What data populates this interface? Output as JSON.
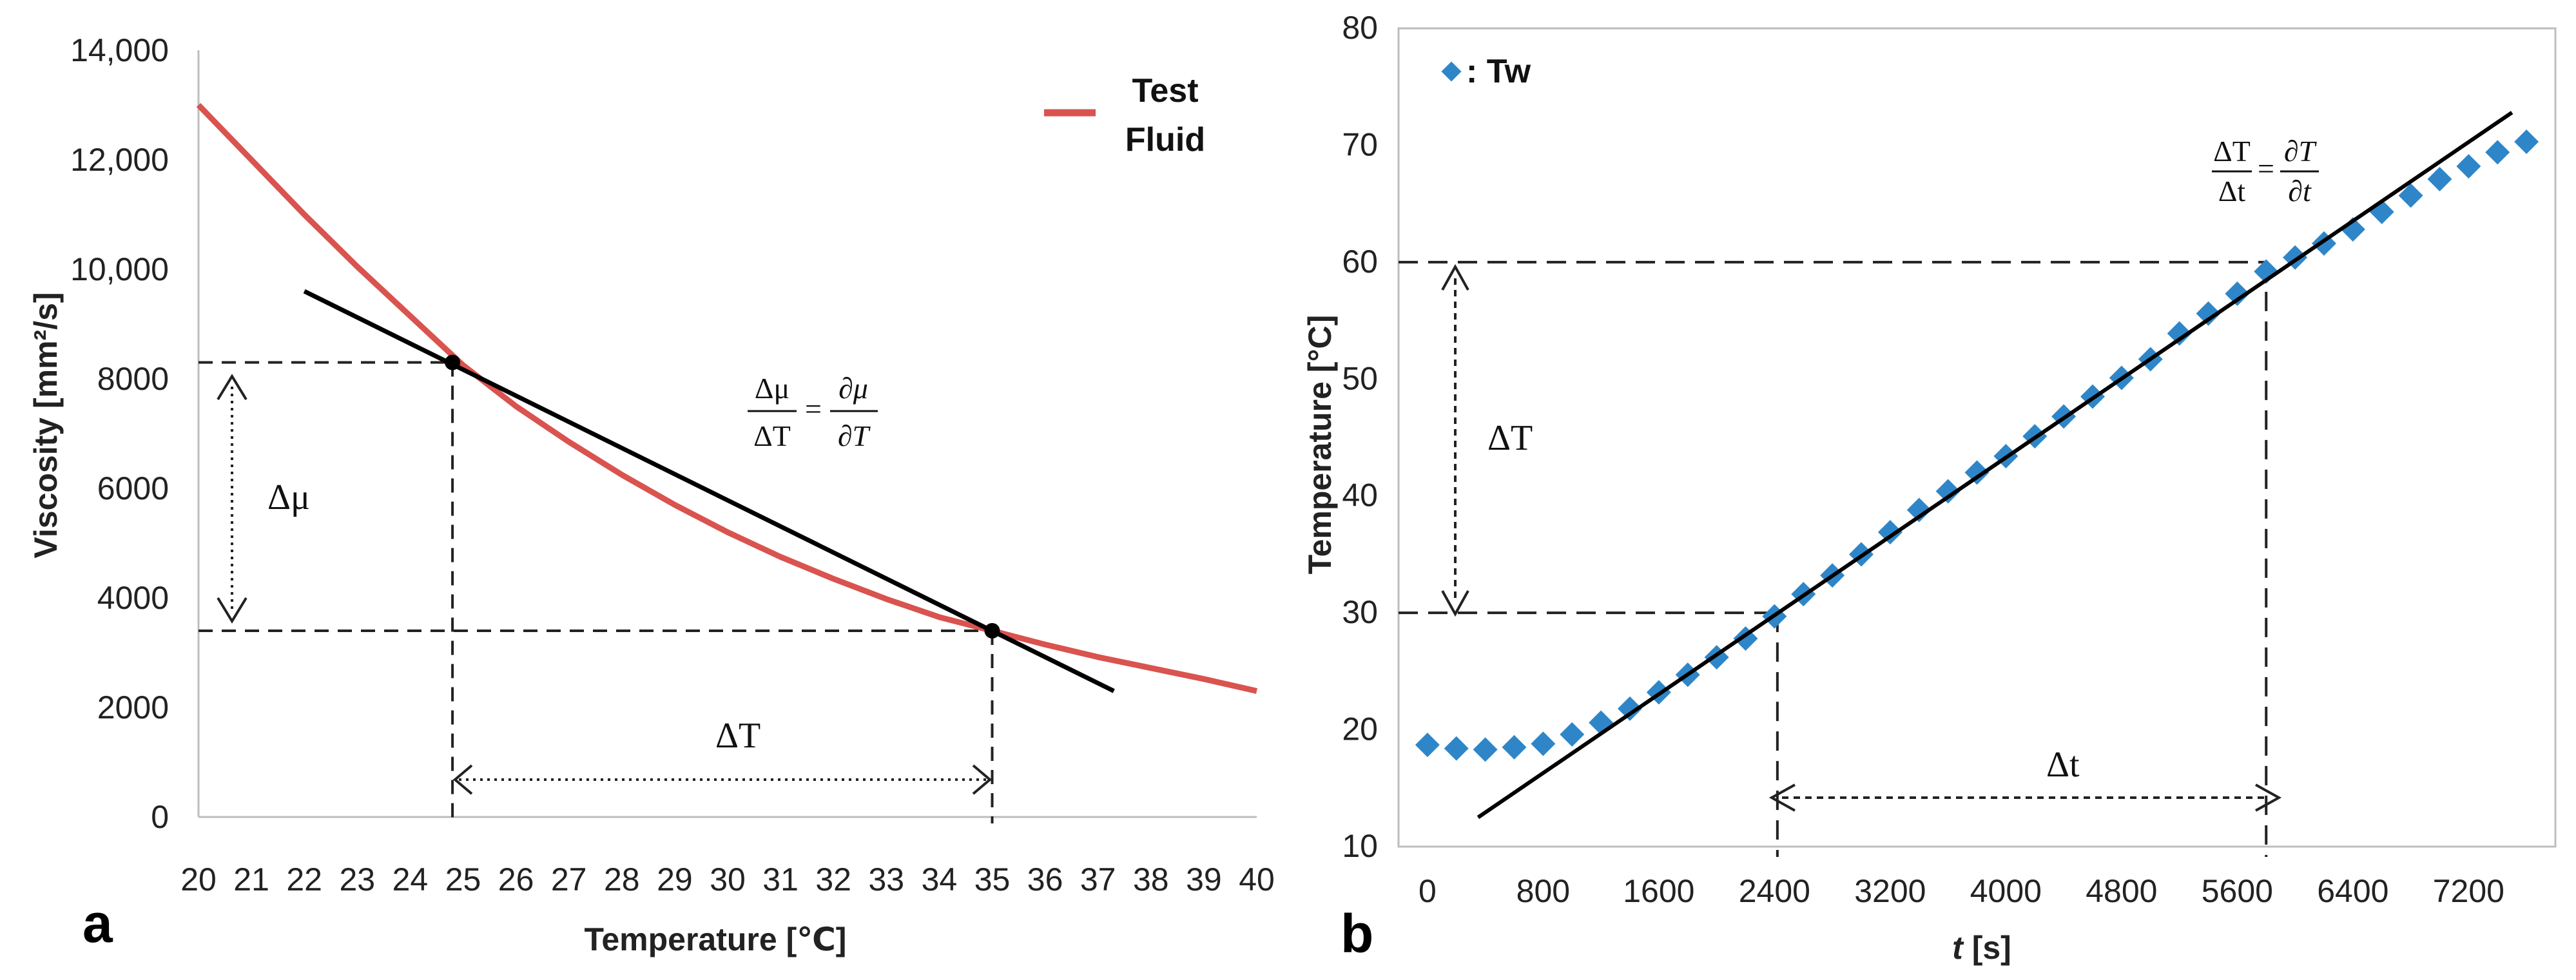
{
  "chart_data": [
    {
      "panel_label": "a",
      "type": "line",
      "title": "",
      "xlabel": "Temperature [℃]",
      "ylabel": "Viscosity  [mm²/s]",
      "xlim": [
        20,
        40
      ],
      "ylim": [
        0,
        14000
      ],
      "xticks": [
        "20",
        "21",
        "22",
        "23",
        "24",
        "25",
        "26",
        "27",
        "28",
        "29",
        "30",
        "31",
        "32",
        "33",
        "34",
        "35",
        "36",
        "37",
        "38",
        "39",
        "40"
      ],
      "yticks": [
        "0",
        "2000",
        "4000",
        "6000",
        "8000",
        "10,000",
        "12,000",
        "14,000"
      ],
      "series": [
        {
          "name": "Test Fluid",
          "color": "#d9534f",
          "x": [
            20,
            21,
            22,
            23,
            24,
            25,
            26,
            27,
            28,
            29,
            30,
            31,
            32,
            33,
            34,
            35,
            36,
            37,
            38,
            39,
            40
          ],
          "y": [
            13000,
            12000,
            11000,
            10050,
            9150,
            8250,
            7500,
            6850,
            6250,
            5700,
            5200,
            4750,
            4350,
            3980,
            3650,
            3400,
            3150,
            2920,
            2720,
            2520,
            2300
          ]
        }
      ],
      "tangent_line": {
        "x": [
          22,
          37.3
        ],
        "y": [
          9600,
          2300
        ],
        "color": "#000000"
      },
      "points": [
        {
          "x": 24.8,
          "y": 8300
        },
        {
          "x": 35,
          "y": 3400
        }
      ],
      "legend_entries": [
        "Test",
        "Fluid"
      ],
      "delta_y_label": "Δμ",
      "delta_x_label": "ΔT",
      "formula": {
        "lhs_num": "Δμ",
        "lhs_den": "ΔT",
        "eq": "=",
        "rhs_num": "∂μ",
        "rhs_den": "∂T"
      }
    },
    {
      "panel_label": "b",
      "type": "scatter",
      "title": "",
      "xlabel_italic": "t",
      "xlabel_rest": " [s]",
      "ylabel": "Temperature [°C]",
      "xlim": [
        -200,
        7800
      ],
      "ylim": [
        10,
        80
      ],
      "xtick_values": [
        0,
        800,
        1600,
        2400,
        3200,
        4000,
        4800,
        5600,
        6400,
        7200
      ],
      "xticks": [
        "0",
        "800",
        "1600",
        "2400",
        "3200",
        "4000",
        "4800",
        "5600",
        "6400",
        "7200"
      ],
      "ytick_values": [
        10,
        20,
        30,
        40,
        50,
        60,
        70,
        80
      ],
      "yticks": [
        "10",
        "20",
        "30",
        "40",
        "50",
        "60",
        "70",
        "80"
      ],
      "series": [
        {
          "name": ": Tw",
          "marker": "diamond",
          "color": "#2e86c8",
          "x": [
            0,
            200,
            400,
            600,
            800,
            1000,
            1200,
            1400,
            1600,
            1800,
            2000,
            2200,
            2400,
            2600,
            2800,
            3000,
            3200,
            3400,
            3600,
            3800,
            4000,
            4200,
            4400,
            4600,
            4800,
            5000,
            5200,
            5400,
            5600,
            5800,
            6000,
            6200,
            6400,
            6600,
            6800,
            7000,
            7200,
            7400,
            7600
          ],
          "y": [
            18.7,
            18.4,
            18.3,
            18.5,
            18.8,
            19.6,
            20.6,
            21.8,
            23.2,
            24.7,
            26.2,
            27.8,
            29.7,
            31.6,
            33.2,
            35.0,
            36.9,
            38.8,
            40.4,
            42.0,
            43.4,
            45.1,
            46.8,
            48.5,
            50.1,
            51.7,
            53.9,
            55.6,
            57.3,
            59.2,
            60.4,
            61.6,
            62.8,
            64.3,
            65.7,
            67.1,
            68.2,
            69.4,
            70.3
          ]
        }
      ],
      "tangent_line": {
        "x": [
          350,
          7500
        ],
        "y": [
          12.5,
          72.8
        ],
        "color": "#000000"
      },
      "delta_y_label": "ΔT",
      "delta_x_label": "Δt",
      "formula": {
        "lhs_num": "ΔT",
        "lhs_den": "Δt",
        "eq": "=",
        "rhs_num": "∂T",
        "rhs_den": "∂t"
      }
    }
  ]
}
